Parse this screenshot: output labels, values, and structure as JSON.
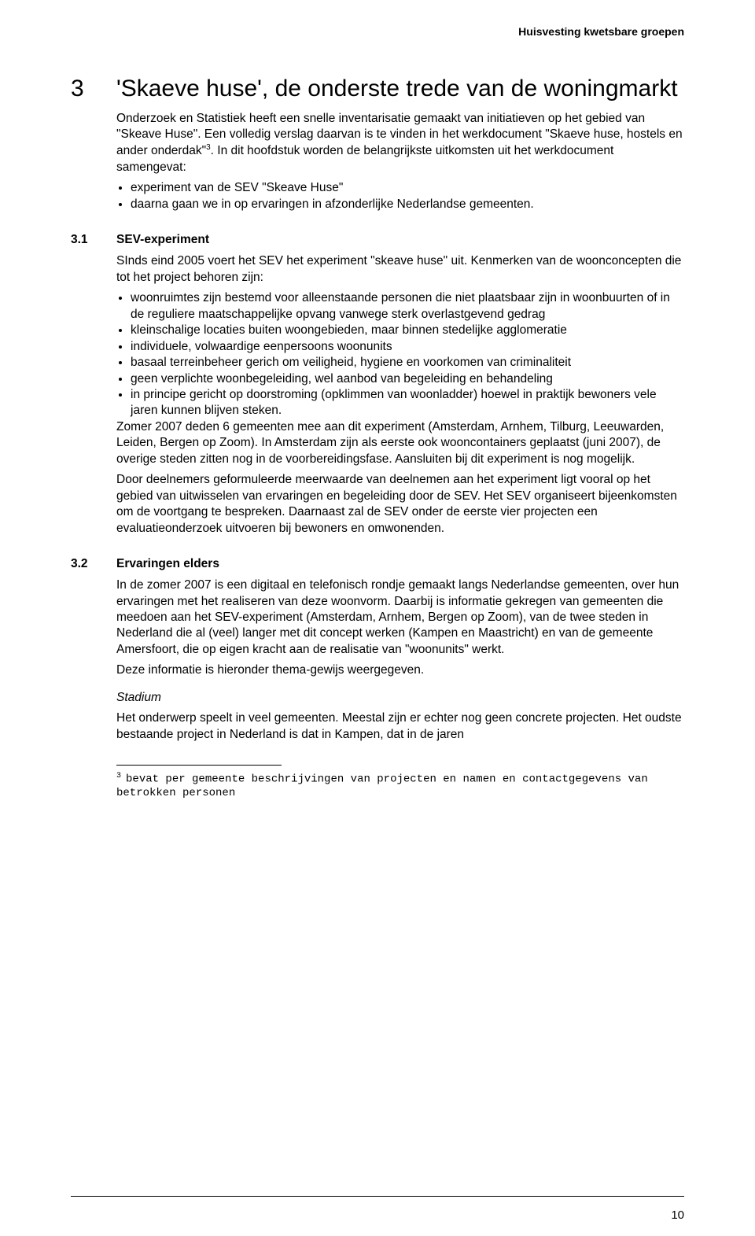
{
  "running_header": "Huisvesting kwetsbare groepen",
  "chapter": {
    "number": "3",
    "title": "'Skaeve huse', de onderste trede van de woningmarkt"
  },
  "intro": {
    "p1_a": "Onderzoek en Statistiek heeft een snelle inventarisatie gemaakt van initiatieven op het gebied van \"Skeave Huse\". Een volledig verslag daarvan is te vinden in het werkdocument \"Skaeve huse, hostels en ander onderdak\"",
    "p1_sup": "3",
    "p1_b": ". In dit hoofdstuk worden de belangrijkste uitkomsten uit het werkdocument samengevat:",
    "bullets": [
      "experiment van de SEV \"Skeave Huse\"",
      "daarna gaan we in op ervaringen in afzonderlijke Nederlandse gemeenten."
    ]
  },
  "sec31": {
    "number": "3.1",
    "title": "SEV-experiment",
    "p1": "SInds eind 2005 voert het SEV het experiment \"skeave huse\" uit. Kenmerken van de woonconcepten die tot het project behoren zijn:",
    "bullets": [
      "woonruimtes zijn bestemd voor alleenstaande personen die niet plaatsbaar zijn in woonbuurten of in de reguliere maatschappelijke opvang vanwege sterk overlastgevend gedrag",
      "kleinschalige locaties buiten woongebieden, maar binnen stedelijke agglomeratie",
      "individuele, volwaardige eenpersoons woonunits",
      "basaal terreinbeheer gerich om veiligheid, hygiene en voorkomen van criminaliteit",
      "geen verplichte woonbegeleiding, wel aanbod van begeleiding en behandeling",
      "in principe gericht op doorstroming (opklimmen van woonladder) hoewel in praktijk bewoners vele jaren kunnen blijven steken."
    ],
    "p2": "Zomer 2007 deden 6 gemeenten mee aan dit experiment (Amsterdam, Arnhem, Tilburg, Leeuwarden, Leiden, Bergen op Zoom). In Amsterdam zijn als eerste ook wooncontainers geplaatst (juni 2007), de overige steden zitten nog in de voorbereidingsfase. Aansluiten bij dit experiment is nog mogelijk.",
    "p3": "Door deelnemers geformuleerde meerwaarde van deelnemen aan het experiment ligt vooral op het gebied van uitwisselen van ervaringen en begeleiding door de SEV. Het SEV organiseert bijeenkomsten om de voortgang te bespreken. Daarnaast zal de SEV onder de eerste vier projecten een evaluatieonderzoek uitvoeren bij bewoners en omwonenden."
  },
  "sec32": {
    "number": "3.2",
    "title": "Ervaringen elders",
    "p1": "In de zomer 2007 is een digitaal en telefonisch rondje gemaakt langs Nederlandse gemeenten, over hun ervaringen met het realiseren van deze woonvorm. Daarbij is informatie gekregen van gemeenten die meedoen aan het SEV-experiment (Amsterdam, Arnhem, Bergen op Zoom), van de twee steden in Nederland die al (veel) langer met dit concept werken (Kampen en Maastricht) en van de gemeente Amersfoort, die op eigen kracht aan de realisatie van \"woonunits\" werkt.",
    "p2": "Deze informatie is hieronder thema-gewijs weergegeven.",
    "subhead": "Stadium",
    "p3": "Het onderwerp speelt in veel gemeenten. Meestal zijn er echter nog geen concrete projecten. Het oudste bestaande project in Nederland is dat in Kampen, dat in de jaren"
  },
  "footnote": {
    "mark": "3",
    "text": "bevat per gemeente beschrijvingen van projecten en namen en contactgegevens van betrokken personen"
  },
  "page_number": "10"
}
